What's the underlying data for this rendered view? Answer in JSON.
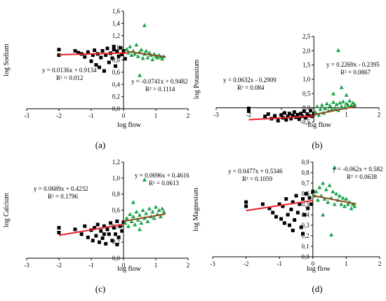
{
  "colors": {
    "left_points": "#000000",
    "right_points": "#1aa34a",
    "left_line": "#e8202a",
    "right_line": "#8b4a1c"
  },
  "chart_data": [
    {
      "id": "a",
      "type": "scatter",
      "caption": "(a)",
      "xlabel": "log flow",
      "ylabel": "log Sodium",
      "xlim": [
        -3,
        2
      ],
      "ylim": [
        0,
        1.6
      ],
      "xticks": [
        "-3",
        "-2",
        "-1",
        "0",
        "1",
        "2"
      ],
      "yticks": [
        "0,0",
        "0,2",
        "0,4",
        "0,6",
        "0,8",
        "1,0",
        "1,2",
        "1,4",
        "1,6"
      ],
      "left_fit": {
        "equation": "y = 0.0136x + 0.9134",
        "r2": "R² = 0.012",
        "slope": 0.0136,
        "intercept": 0.9134,
        "x_range": [
          -2,
          0.1
        ]
      },
      "right_fit": {
        "equation": "y = -0.0741x + 0.9482",
        "r2": "R² = 0.1114",
        "slope": -0.0741,
        "intercept": 0.9482,
        "x_range": [
          0.1,
          1.3
        ]
      },
      "left_points": [
        [
          -2,
          0.97
        ],
        [
          -2,
          0.88
        ],
        [
          -1.5,
          0.95
        ],
        [
          -1.3,
          0.9
        ],
        [
          -1.2,
          0.85
        ],
        [
          -1.1,
          0.93
        ],
        [
          -1.0,
          0.78
        ],
        [
          -0.95,
          0.88
        ],
        [
          -0.9,
          0.96
        ],
        [
          -0.85,
          0.72
        ],
        [
          -0.8,
          0.9
        ],
        [
          -0.75,
          0.68
        ],
        [
          -0.7,
          0.84
        ],
        [
          -0.65,
          0.95
        ],
        [
          -0.6,
          0.62
        ],
        [
          -0.55,
          0.88
        ],
        [
          -0.5,
          0.99
        ],
        [
          -0.45,
          0.76
        ],
        [
          -0.4,
          0.91
        ],
        [
          -0.35,
          0.83
        ],
        [
          -0.3,
          0.97
        ],
        [
          -0.25,
          0.7
        ],
        [
          -0.2,
          0.94
        ],
        [
          -0.15,
          0.86
        ],
        [
          -0.1,
          1.0
        ],
        [
          -0.05,
          0.89
        ],
        [
          0.0,
          0.95
        ],
        [
          0.05,
          0.82
        ],
        [
          -1.4,
          0.92
        ],
        [
          -0.3,
          1.02
        ]
      ],
      "right_points": [
        [
          0.1,
          0.98
        ],
        [
          0.15,
          0.92
        ],
        [
          0.2,
          1.02
        ],
        [
          0.25,
          0.88
        ],
        [
          0.3,
          0.95
        ],
        [
          0.35,
          0.9
        ],
        [
          0.4,
          1.05
        ],
        [
          0.45,
          0.86
        ],
        [
          0.5,
          0.93
        ],
        [
          0.55,
          0.97
        ],
        [
          0.6,
          0.83
        ],
        [
          0.65,
          0.9
        ],
        [
          0.7,
          0.95
        ],
        [
          0.75,
          0.84
        ],
        [
          0.8,
          0.92
        ],
        [
          0.85,
          0.88
        ],
        [
          0.9,
          0.81
        ],
        [
          0.95,
          0.9
        ],
        [
          1.0,
          0.86
        ],
        [
          1.05,
          0.84
        ],
        [
          1.1,
          0.88
        ],
        [
          1.15,
          0.85
        ],
        [
          1.2,
          0.82
        ],
        [
          1.25,
          0.86
        ],
        [
          0.65,
          1.37
        ],
        [
          0.5,
          0.55
        ]
      ]
    },
    {
      "id": "b",
      "type": "scatter",
      "caption": "(b)",
      "xlabel": "log flow",
      "ylabel": "log Potassium",
      "xlim": [
        -3,
        2
      ],
      "ylim": [
        -0.5,
        2.5
      ],
      "xticks": [
        "-3",
        "-2",
        "-1",
        "0",
        "1",
        "2"
      ],
      "yticks": [
        "-0,5",
        "0,0",
        "0,5",
        "1,0",
        "1,5",
        "2,0",
        "2,5"
      ],
      "left_fit": {
        "equation": "y = 0.0632x - 0.2909",
        "r2": "R² = 0.084",
        "slope": 0.0632,
        "intercept": -0.2909,
        "x_range": [
          -2,
          0
        ]
      },
      "right_fit": {
        "equation": "y = 0.2269x - 0.2395",
        "r2": "R² = 0.0867",
        "slope": 0.2269,
        "intercept": -0.2395,
        "x_range": [
          0,
          1.3
        ]
      },
      "left_points": [
        [
          -2,
          -0.02
        ],
        [
          -2,
          -0.12
        ],
        [
          -1.5,
          -0.3
        ],
        [
          -1.4,
          -0.22
        ],
        [
          -1.3,
          -0.38
        ],
        [
          -1.2,
          -0.28
        ],
        [
          -1.1,
          -0.45
        ],
        [
          -1.0,
          -0.25
        ],
        [
          -0.95,
          -0.35
        ],
        [
          -0.9,
          -0.18
        ],
        [
          -0.85,
          -0.42
        ],
        [
          -0.8,
          -0.3
        ],
        [
          -0.75,
          -0.2
        ],
        [
          -0.7,
          -0.38
        ],
        [
          -0.65,
          -0.27
        ],
        [
          -0.6,
          -0.15
        ],
        [
          -0.55,
          -0.33
        ],
        [
          -0.5,
          -0.24
        ],
        [
          -0.45,
          -0.4
        ],
        [
          -0.4,
          -0.2
        ],
        [
          -0.35,
          -0.3
        ],
        [
          -0.3,
          -0.12
        ],
        [
          -0.25,
          -0.35
        ],
        [
          -0.2,
          -0.22
        ],
        [
          -0.15,
          -0.28
        ],
        [
          -0.1,
          -0.1
        ],
        [
          -0.05,
          -0.3
        ],
        [
          0.0,
          -0.2
        ]
      ],
      "right_points": [
        [
          0.05,
          -0.15
        ],
        [
          0.1,
          0.05
        ],
        [
          0.15,
          -0.25
        ],
        [
          0.2,
          -0.05
        ],
        [
          0.25,
          0.1
        ],
        [
          0.3,
          -0.18
        ],
        [
          0.35,
          -0.02
        ],
        [
          0.4,
          0.15
        ],
        [
          0.45,
          -0.1
        ],
        [
          0.5,
          0.08
        ],
        [
          0.55,
          -0.05
        ],
        [
          0.6,
          0.2
        ],
        [
          0.65,
          0.0
        ],
        [
          0.7,
          0.12
        ],
        [
          0.75,
          -0.08
        ],
        [
          0.8,
          0.18
        ],
        [
          0.85,
          0.05
        ],
        [
          0.9,
          0.22
        ],
        [
          0.95,
          0.02
        ],
        [
          1.0,
          0.15
        ],
        [
          1.05,
          0.1
        ],
        [
          1.1,
          0.25
        ],
        [
          1.15,
          0.08
        ],
        [
          1.2,
          0.18
        ],
        [
          1.25,
          0.12
        ],
        [
          0.75,
          2.02
        ],
        [
          0.85,
          0.72
        ],
        [
          0.6,
          0.5
        ],
        [
          1.0,
          0.45
        ]
      ]
    },
    {
      "id": "c",
      "type": "scatter",
      "caption": "(c)",
      "xlabel": "log flow",
      "ylabel": "log Calcium",
      "xlim": [
        -3,
        2
      ],
      "ylim": [
        0,
        1.2
      ],
      "xticks": [
        "-3",
        "-2",
        "-1",
        "0",
        "1",
        "2"
      ],
      "yticks": [
        "0,0",
        "0,2",
        "0,4",
        "0,6",
        "0,8",
        "1,0",
        "1,2"
      ],
      "left_fit": {
        "equation": "y = 0.0689x + 0.4232",
        "r2": "R² = 0.1796",
        "slope": 0.0689,
        "intercept": 0.4232,
        "x_range": [
          -2,
          0
        ]
      },
      "right_fit": {
        "equation": "y = 0.0696x + 0.4616",
        "r2": "R² = 0.0613",
        "slope": 0.0696,
        "intercept": 0.4616,
        "x_range": [
          0,
          1.3
        ]
      },
      "left_points": [
        [
          -2,
          0.38
        ],
        [
          -2,
          0.32
        ],
        [
          -1.5,
          0.36
        ],
        [
          -1.3,
          0.3
        ],
        [
          -1.2,
          0.4
        ],
        [
          -1.1,
          0.26
        ],
        [
          -1.0,
          0.35
        ],
        [
          -0.95,
          0.22
        ],
        [
          -0.9,
          0.38
        ],
        [
          -0.85,
          0.28
        ],
        [
          -0.8,
          0.42
        ],
        [
          -0.75,
          0.2
        ],
        [
          -0.7,
          0.34
        ],
        [
          -0.65,
          0.25
        ],
        [
          -0.6,
          0.4
        ],
        [
          -0.55,
          0.18
        ],
        [
          -0.5,
          0.36
        ],
        [
          -0.45,
          0.3
        ],
        [
          -0.4,
          0.44
        ],
        [
          -0.35,
          0.22
        ],
        [
          -0.3,
          0.38
        ],
        [
          -0.25,
          0.3
        ],
        [
          -0.2,
          0.46
        ],
        [
          -0.15,
          0.26
        ],
        [
          -0.1,
          0.4
        ],
        [
          -0.05,
          0.34
        ],
        [
          0.0,
          0.45
        ],
        [
          -0.6,
          0.3
        ],
        [
          -0.2,
          0.17
        ]
      ],
      "right_points": [
        [
          0.05,
          0.44
        ],
        [
          0.1,
          0.5
        ],
        [
          0.15,
          0.4
        ],
        [
          0.2,
          0.55
        ],
        [
          0.25,
          0.46
        ],
        [
          0.3,
          0.52
        ],
        [
          0.35,
          0.42
        ],
        [
          0.4,
          0.58
        ],
        [
          0.45,
          0.48
        ],
        [
          0.5,
          0.54
        ],
        [
          0.55,
          0.44
        ],
        [
          0.6,
          0.6
        ],
        [
          0.65,
          0.5
        ],
        [
          0.7,
          0.56
        ],
        [
          0.75,
          0.46
        ],
        [
          0.8,
          0.62
        ],
        [
          0.85,
          0.52
        ],
        [
          0.9,
          0.58
        ],
        [
          0.95,
          0.5
        ],
        [
          1.0,
          0.64
        ],
        [
          1.05,
          0.55
        ],
        [
          1.1,
          0.6
        ],
        [
          1.15,
          0.52
        ],
        [
          1.2,
          0.62
        ],
        [
          1.25,
          0.58
        ],
        [
          0.3,
          0.7
        ],
        [
          0.65,
          0.98
        ],
        [
          0.5,
          0.36
        ]
      ]
    },
    {
      "id": "d",
      "type": "scatter",
      "caption": "(d)",
      "xlabel": "log flow",
      "ylabel": "log Magnesium",
      "xlim": [
        -3,
        2
      ],
      "ylim": [
        0,
        0.9
      ],
      "xticks": [
        "-3",
        "-2",
        "-1",
        "0",
        "1",
        "2"
      ],
      "yticks": [
        "0,0",
        "0,1",
        "0,2",
        "0,3",
        "0,4",
        "0,5",
        "0,6",
        "0,7",
        "0,8",
        "0,9"
      ],
      "left_fit": {
        "equation": "y = 0.0477x + 0.5346",
        "r2": "R² = 0.1059",
        "slope": 0.0477,
        "intercept": 0.5346,
        "x_range": [
          -2,
          0
        ]
      },
      "right_fit": {
        "equation": "y = -0.062x + 0.582",
        "r2": "R² = 0.0638",
        "slope": -0.062,
        "intercept": 0.582,
        "x_range": [
          0,
          1.3
        ]
      },
      "left_points": [
        [
          -2,
          0.52
        ],
        [
          -2,
          0.48
        ],
        [
          -1.5,
          0.5
        ],
        [
          -1.3,
          0.46
        ],
        [
          -1.2,
          0.42
        ],
        [
          -1.1,
          0.38
        ],
        [
          -1.0,
          0.5
        ],
        [
          -0.95,
          0.36
        ],
        [
          -0.9,
          0.48
        ],
        [
          -0.85,
          0.32
        ],
        [
          -0.8,
          0.55
        ],
        [
          -0.75,
          0.4
        ],
        [
          -0.7,
          0.3
        ],
        [
          -0.65,
          0.45
        ],
        [
          -0.6,
          0.52
        ],
        [
          -0.55,
          0.35
        ],
        [
          -0.5,
          0.58
        ],
        [
          -0.45,
          0.42
        ],
        [
          -0.4,
          0.5
        ],
        [
          -0.35,
          0.28
        ],
        [
          -0.3,
          0.55
        ],
        [
          -0.25,
          0.4
        ],
        [
          -0.2,
          0.6
        ],
        [
          -0.15,
          0.46
        ],
        [
          -0.1,
          0.56
        ],
        [
          -0.05,
          0.5
        ],
        [
          0.0,
          0.62
        ],
        [
          -0.6,
          0.25
        ],
        [
          -0.3,
          0.22
        ]
      ],
      "right_points": [
        [
          0.05,
          0.58
        ],
        [
          0.1,
          0.62
        ],
        [
          0.15,
          0.54
        ],
        [
          0.2,
          0.66
        ],
        [
          0.25,
          0.58
        ],
        [
          0.3,
          0.7
        ],
        [
          0.35,
          0.55
        ],
        [
          0.4,
          0.64
        ],
        [
          0.45,
          0.52
        ],
        [
          0.5,
          0.68
        ],
        [
          0.55,
          0.56
        ],
        [
          0.6,
          0.62
        ],
        [
          0.65,
          0.5
        ],
        [
          0.7,
          0.6
        ],
        [
          0.75,
          0.54
        ],
        [
          0.8,
          0.58
        ],
        [
          0.85,
          0.5
        ],
        [
          0.9,
          0.56
        ],
        [
          0.95,
          0.48
        ],
        [
          1.0,
          0.55
        ],
        [
          1.05,
          0.5
        ],
        [
          1.1,
          0.52
        ],
        [
          1.15,
          0.46
        ],
        [
          1.2,
          0.5
        ],
        [
          1.25,
          0.48
        ],
        [
          0.65,
          0.85
        ],
        [
          0.55,
          0.21
        ],
        [
          0.3,
          0.4
        ]
      ]
    }
  ]
}
